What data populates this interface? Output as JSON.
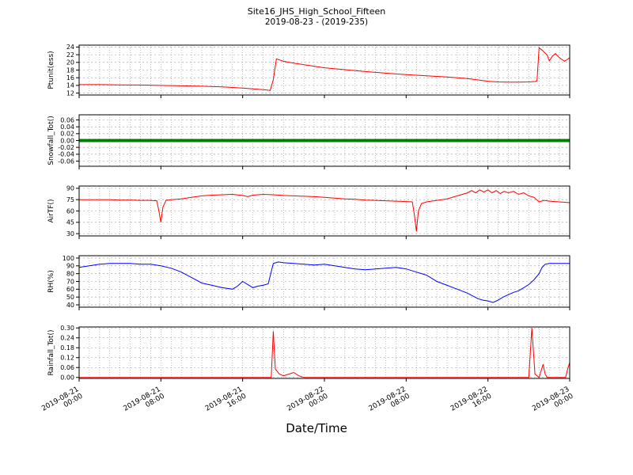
{
  "chart_data": {
    "type": "line",
    "title": "Site16_JHS_High_School_Fifteen",
    "subtitle": "2019-08-23 - (2019-235)",
    "xlabel": "Date/Time",
    "x_unit": "hours since 2019-08-21 00:00",
    "xlim": [
      0,
      48
    ],
    "grid": {
      "enabled": true,
      "style": "dashed",
      "x_interval_hours": 1
    },
    "xticks": {
      "values": [
        0,
        8,
        16,
        24,
        32,
        40,
        48
      ],
      "labels": [
        "2019-08-21\n00:00",
        "2019-08-21\n08:00",
        "2019-08-21\n16:00",
        "2019-08-22\n00:00",
        "2019-08-22\n08:00",
        "2019-08-22\n16:00",
        "2019-08-23\n00:00"
      ]
    },
    "panels": [
      {
        "ylabel": "Ptunit(ess)",
        "color": "#ff0000",
        "line_width": 1,
        "ylim": [
          11.5,
          24.5
        ],
        "yticks": {
          "values": [
            12,
            14,
            16,
            18,
            20,
            22,
            24
          ],
          "labels": [
            "12",
            "14",
            "16",
            "18",
            "20",
            "22",
            "24"
          ]
        },
        "x": [
          0,
          2,
          4,
          6,
          8,
          10,
          12,
          14,
          16,
          17,
          18,
          18.7,
          19,
          19.3,
          20,
          21,
          22,
          24,
          26,
          28,
          30,
          32,
          34,
          36,
          38,
          40,
          41,
          42,
          43,
          44,
          44.6,
          44.8,
          45,
          45.3,
          45.8,
          46,
          46.3,
          46.6,
          47,
          47.5,
          48
        ],
        "y": [
          14.2,
          14.2,
          14.15,
          14.1,
          14.0,
          13.9,
          13.8,
          13.6,
          13.3,
          13.1,
          12.9,
          12.7,
          15.5,
          20.9,
          20.3,
          19.8,
          19.4,
          18.6,
          18.1,
          17.6,
          17.2,
          16.8,
          16.5,
          16.2,
          15.8,
          15.1,
          14.9,
          14.85,
          14.85,
          14.9,
          15.0,
          15.2,
          23.8,
          23.2,
          21.9,
          20.4,
          21.6,
          22.3,
          21.2,
          20.3,
          21.2
        ]
      },
      {
        "ylabel": "Snowfall_Tot()",
        "color": "#008000",
        "line_width": 4,
        "ylim": [
          -0.075,
          0.075
        ],
        "yticks": {
          "values": [
            -0.06,
            -0.04,
            -0.02,
            0.0,
            0.02,
            0.04,
            0.06
          ],
          "labels": [
            "-0.06",
            "-0.04",
            "-0.02",
            "0.00",
            "0.02",
            "0.04",
            "0.06"
          ]
        },
        "x": [
          0,
          48
        ],
        "y": [
          0,
          0
        ]
      },
      {
        "ylabel": "AirTF()",
        "color": "#ff0000",
        "line_width": 1,
        "ylim": [
          27,
          93
        ],
        "yticks": {
          "values": [
            30,
            45,
            60,
            75,
            90
          ],
          "labels": [
            "30",
            "45",
            "60",
            "75",
            "90"
          ]
        },
        "x": [
          0,
          1,
          2,
          3,
          4,
          5,
          6,
          7,
          7.6,
          7.8,
          8,
          8.2,
          8.5,
          9,
          10,
          11,
          12,
          13,
          14,
          15,
          16,
          16.5,
          17,
          18,
          19,
          20,
          21,
          22,
          23,
          24,
          25,
          26,
          27,
          28,
          29,
          30,
          31,
          32,
          32.6,
          32.8,
          33,
          33.2,
          33.5,
          34,
          35,
          36,
          37,
          38,
          38.4,
          38.8,
          39.2,
          39.6,
          40,
          40.4,
          40.8,
          41.2,
          41.6,
          42,
          42.5,
          43,
          43.5,
          44,
          44.5,
          45,
          45.5,
          46,
          47,
          48
        ],
        "y": [
          75,
          75,
          75,
          75,
          74.5,
          74.5,
          74,
          74,
          73.5,
          60,
          45,
          65,
          74,
          75,
          76,
          78,
          80,
          81,
          81.5,
          82,
          80.5,
          79,
          81,
          82,
          81.5,
          80.5,
          80,
          79.5,
          79,
          78,
          77,
          76,
          75.5,
          74.5,
          74,
          73.5,
          73,
          72.5,
          72,
          55,
          33,
          60,
          70,
          72,
          74,
          76,
          80,
          84,
          87,
          84,
          88,
          85,
          88,
          84,
          87,
          83,
          86,
          84,
          86,
          82,
          84,
          80,
          78,
          72,
          74,
          73,
          72,
          71
        ]
      },
      {
        "ylabel": "RH(%)",
        "color": "#0000ff",
        "line_width": 1,
        "ylim": [
          37,
          103
        ],
        "yticks": {
          "values": [
            40,
            50,
            60,
            70,
            80,
            90,
            100
          ],
          "labels": [
            "40",
            "50",
            "60",
            "70",
            "80",
            "90",
            "100"
          ]
        },
        "x": [
          0,
          1,
          2,
          3,
          4,
          5,
          6,
          7,
          8,
          9,
          10,
          11,
          12,
          13,
          14,
          15,
          15.5,
          16,
          16.5,
          17,
          17.5,
          18,
          18.5,
          19,
          19.5,
          20,
          21,
          22,
          23,
          24,
          25,
          26,
          27,
          28,
          29,
          30,
          31,
          32,
          33,
          34,
          35,
          36,
          37,
          38,
          39,
          39.5,
          40,
          40.5,
          41,
          41.5,
          42,
          42.5,
          43,
          43.5,
          44,
          44.5,
          45,
          45.3,
          45.6,
          46,
          47,
          48
        ],
        "y": [
          88,
          90,
          92,
          93,
          93,
          93,
          92,
          92,
          90,
          87,
          82,
          75,
          68,
          65,
          62,
          60,
          64,
          70,
          66,
          62,
          64,
          65,
          67,
          93,
          95,
          94,
          93,
          92,
          91,
          92,
          90,
          88,
          86,
          85,
          86,
          87,
          88,
          86,
          82,
          78,
          70,
          65,
          60,
          55,
          48,
          46,
          45,
          43,
          46,
          50,
          53,
          56,
          58,
          62,
          66,
          72,
          80,
          88,
          92,
          93,
          93,
          93
        ]
      },
      {
        "ylabel": "Rainfall_Tot()",
        "color": "#ff0000",
        "line_width": 1,
        "ylim": [
          -0.006,
          0.306
        ],
        "yticks": {
          "values": [
            0.0,
            0.06,
            0.12,
            0.18,
            0.24,
            0.3
          ],
          "labels": [
            "0.00",
            "0.06",
            "0.12",
            "0.18",
            "0.24",
            "0.30"
          ]
        },
        "x": [
          0,
          18.8,
          19,
          19.2,
          19.6,
          20,
          20.5,
          21,
          21.5,
          22,
          23,
          44,
          44.3,
          44.6,
          45,
          45.4,
          45.6,
          45.8,
          46,
          47,
          47.6,
          47.8,
          48
        ],
        "y": [
          0,
          0,
          0.28,
          0.05,
          0.02,
          0.01,
          0.02,
          0.03,
          0.01,
          0,
          0,
          0,
          0.3,
          0.02,
          0,
          0.08,
          0.02,
          0,
          0,
          0,
          0,
          0.05,
          0.09
        ]
      }
    ]
  }
}
